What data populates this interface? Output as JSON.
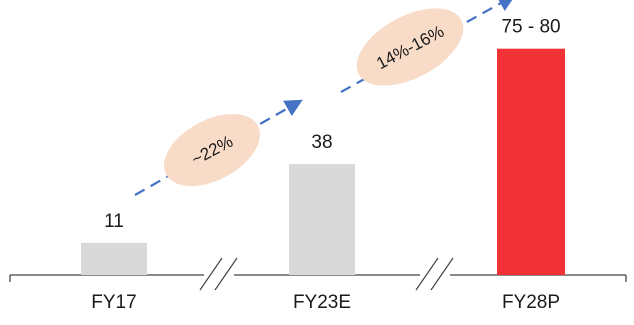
{
  "chart_data": {
    "type": "bar",
    "title": "",
    "xlabel": "",
    "ylabel": "",
    "ylim": [
      0,
      90
    ],
    "grid": false,
    "categories": [
      "FY17",
      "FY23E",
      "FY28P"
    ],
    "values": [
      11,
      38,
      77.5
    ],
    "value_labels": [
      "11",
      "38",
      "75 - 80"
    ],
    "bar_colors": [
      "#d9d9d9",
      "#d9d9d9",
      "#f03236"
    ],
    "axis_breaks": true,
    "growth_annotations": [
      {
        "from": "FY17",
        "to": "FY23E",
        "label": "~22%"
      },
      {
        "from": "FY23E",
        "to": "FY28P",
        "label": "14%-16%"
      }
    ],
    "arrow_color": "#4472c4",
    "bubble_color": "#f8dcc8"
  }
}
